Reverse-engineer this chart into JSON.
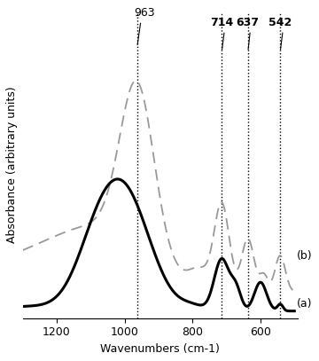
{
  "xlabel": "Wavenumbers (cm-1)",
  "ylabel": "Absorbance (arbitrary units)",
  "xlim": [
    1300,
    500
  ],
  "vlines": [
    963,
    714,
    637,
    542
  ],
  "label_a": "(a)",
  "label_b": "(b)",
  "color_a": "#000000",
  "color_b": "#999999",
  "lw_a": 2.2,
  "lw_b": 1.3,
  "background": "#ffffff",
  "xticks": [
    1200,
    1000,
    800,
    600
  ],
  "xtick_labels": [
    "1200",
    "1000",
    "800",
    "600"
  ]
}
